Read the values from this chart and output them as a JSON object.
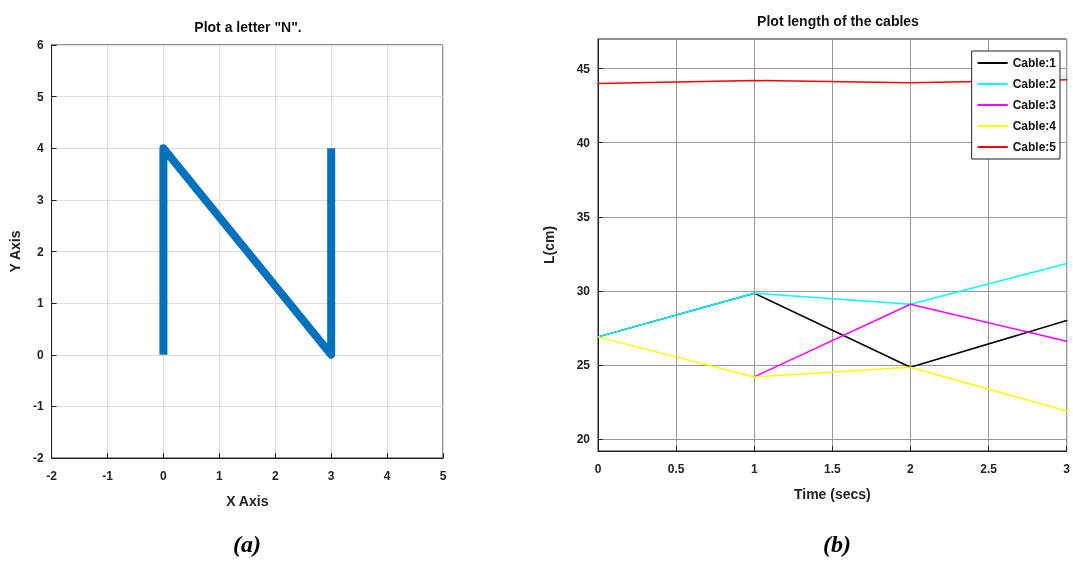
{
  "chart_data": [
    {
      "type": "line",
      "title": "Plot a letter \"N\".",
      "xlabel": "X Axis",
      "ylabel": "Y Axis",
      "annotations": [
        "(a)"
      ],
      "x": [
        0,
        0,
        3,
        3
      ],
      "series": [
        {
          "color": "#0072bd",
          "values": [
            0,
            4,
            0,
            4
          ]
        }
      ],
      "xlim": [
        -2,
        5
      ],
      "xticks": [
        -2,
        -1,
        0,
        1,
        2,
        3,
        4,
        5
      ],
      "ylim": [
        -2,
        6
      ],
      "yticks": [
        -2,
        -1,
        0,
        1,
        2,
        3,
        4,
        5,
        6
      ],
      "grid": true,
      "marker": "none",
      "line_style": "solid",
      "legend": false
    },
    {
      "type": "line",
      "title": "Plot length of the cables",
      "xlabel": "Time (secs)",
      "ylabel": "L(cm)",
      "annotations": [
        "(b)"
      ],
      "x": [
        0,
        1,
        2,
        3
      ],
      "series": [
        {
          "name": "Cable:1",
          "color": "#000000",
          "values": [
            26.9,
            29.85,
            24.85,
            28.0
          ]
        },
        {
          "name": "Cable:2",
          "color": "#00ffff",
          "values": [
            26.9,
            29.85,
            29.1,
            31.85
          ]
        },
        {
          "name": "Cable:3",
          "color": "#ff00ff",
          "values": [
            null,
            24.2,
            29.1,
            26.6
          ]
        },
        {
          "name": "Cable:4",
          "color": "#ffff00",
          "values": [
            26.9,
            24.2,
            24.85,
            21.9
          ]
        },
        {
          "name": "Cable:5",
          "color": "#ff0000",
          "values": [
            44.0,
            44.2,
            44.05,
            44.25
          ]
        }
      ],
      "xlim": [
        0,
        3
      ],
      "xticks": [
        0,
        0.5,
        1,
        1.5,
        2,
        2.5,
        3
      ],
      "ylim": [
        19.2,
        47
      ],
      "yticks": [
        20,
        25,
        30,
        35,
        40,
        45
      ],
      "grid": true,
      "marker": "none",
      "line_style": "solid",
      "legend": "top right"
    }
  ]
}
